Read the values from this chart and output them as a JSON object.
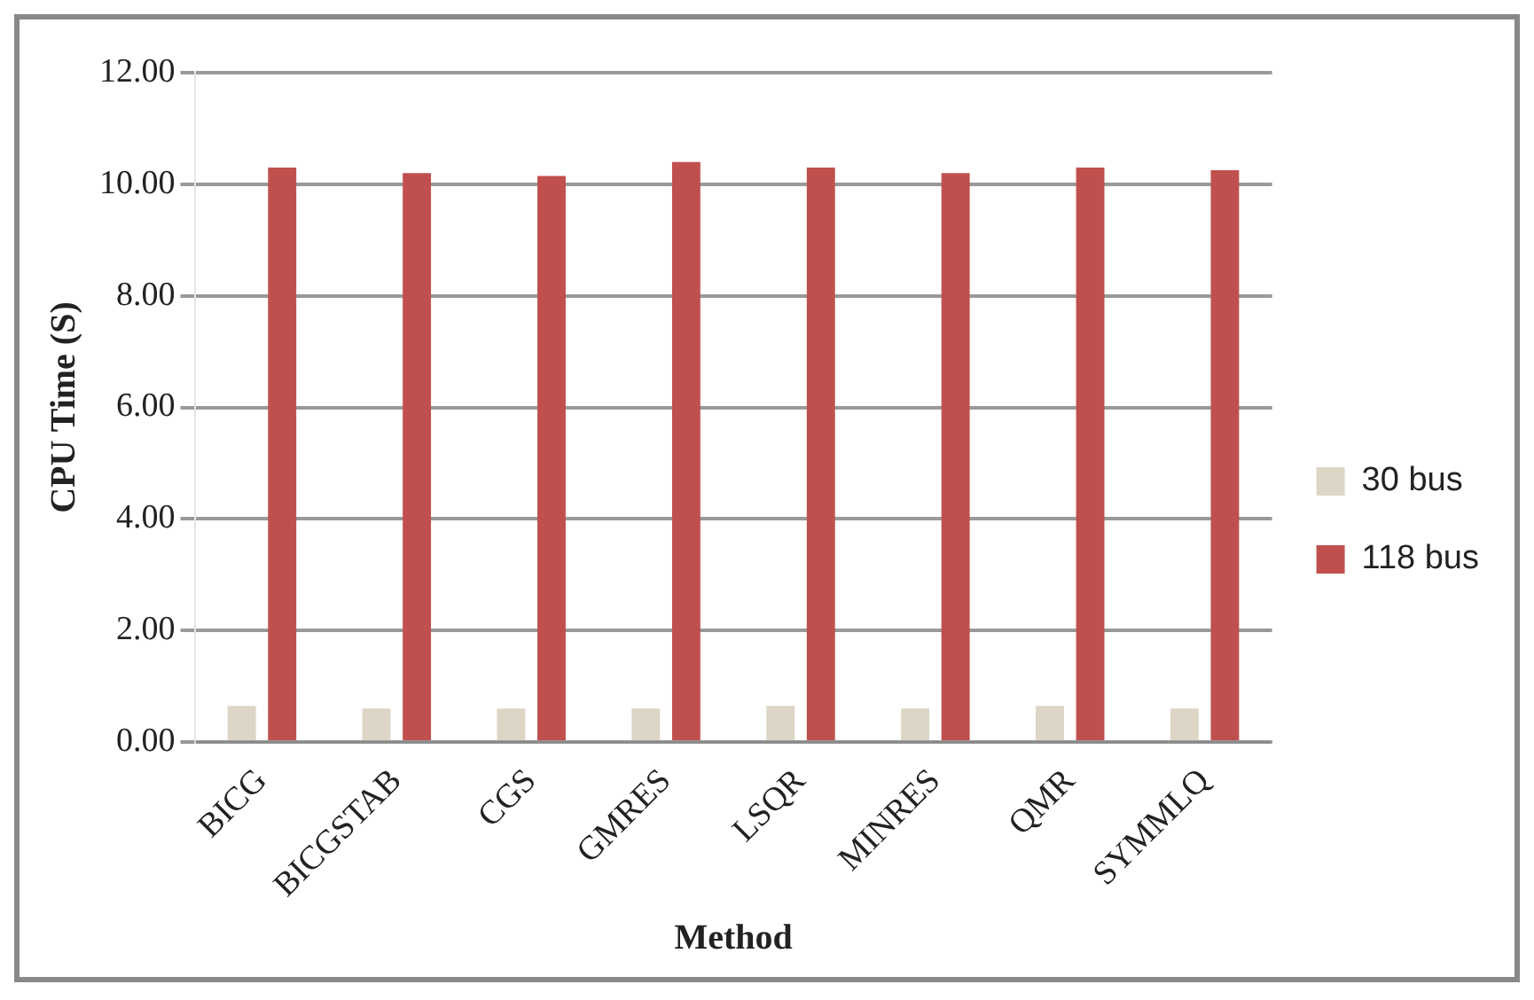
{
  "chart_data": {
    "type": "bar",
    "xlabel": "Method",
    "ylabel": "CPU Time (S)",
    "categories": [
      "BICG",
      "BICGSTAB",
      "CGS",
      "GMRES",
      "LSQR",
      "MINRES",
      "QMR",
      "SYMMLQ"
    ],
    "series": [
      {
        "name": "30 bus",
        "color": "#ddd5c5",
        "values": [
          0.65,
          0.6,
          0.6,
          0.6,
          0.65,
          0.6,
          0.65,
          0.6
        ]
      },
      {
        "name": "118 bus",
        "color": "#c0504d",
        "values": [
          10.3,
          10.2,
          10.15,
          10.4,
          10.3,
          10.2,
          10.3,
          10.25
        ]
      }
    ],
    "ylim": [
      0,
      12
    ],
    "yticks": [
      {
        "value": 0,
        "label": "0.00"
      },
      {
        "value": 2,
        "label": "2.00"
      },
      {
        "value": 4,
        "label": "4.00"
      },
      {
        "value": 6,
        "label": "6.00"
      },
      {
        "value": 8,
        "label": "8.00"
      },
      {
        "value": 10,
        "label": "10.00"
      },
      {
        "value": 12,
        "label": "12.00"
      }
    ],
    "grid": "y",
    "legend": "right"
  }
}
